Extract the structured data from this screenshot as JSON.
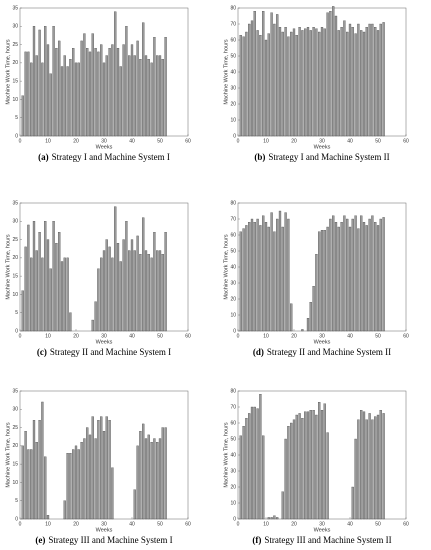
{
  "chart_data": [
    {
      "type": "bar",
      "caption_label": "(a)",
      "caption": "Strategy I and Machine System I",
      "xlabel": "Weeks",
      "ylabel": "Machine Work Time, hours",
      "color": "#9a9a9a",
      "x": [
        1,
        2,
        3,
        4,
        5,
        6,
        7,
        8,
        9,
        10,
        11,
        12,
        13,
        14,
        15,
        16,
        17,
        18,
        19,
        20,
        21,
        22,
        23,
        24,
        25,
        26,
        27,
        28,
        29,
        30,
        31,
        32,
        33,
        34,
        35,
        36,
        37,
        38,
        39,
        40,
        41,
        42,
        43,
        44,
        45,
        46,
        47,
        48,
        49,
        50,
        51,
        52
      ],
      "values": [
        11,
        23,
        23,
        20,
        30,
        22,
        29,
        20,
        30,
        25,
        17,
        30,
        24,
        26,
        19,
        22,
        19,
        21,
        24,
        20,
        20,
        26,
        28,
        24,
        23,
        28,
        24,
        23,
        25,
        20,
        22,
        24,
        25,
        34,
        24,
        19,
        25,
        30,
        22,
        25,
        22,
        26,
        21,
        31,
        22,
        21,
        20,
        27,
        22,
        22,
        21,
        27
      ],
      "xlim": [
        0,
        60
      ],
      "xticks": [
        0,
        10,
        20,
        30,
        40,
        50,
        60
      ],
      "ylim": [
        0,
        35
      ],
      "yticks": [
        0,
        5,
        10,
        15,
        20,
        25,
        30,
        35
      ]
    },
    {
      "type": "bar",
      "caption_label": "(b)",
      "caption": "Strategy I and Machine System II",
      "xlabel": "Weeks",
      "ylabel": "Machine Work Time, hours",
      "color": "#9a9a9a",
      "x": [
        1,
        2,
        3,
        4,
        5,
        6,
        7,
        8,
        9,
        10,
        11,
        12,
        13,
        14,
        15,
        16,
        17,
        18,
        19,
        20,
        21,
        22,
        23,
        24,
        25,
        26,
        27,
        28,
        29,
        30,
        31,
        32,
        33,
        34,
        35,
        36,
        37,
        38,
        39,
        40,
        41,
        42,
        43,
        44,
        45,
        46,
        47,
        48,
        49,
        50,
        51,
        52
      ],
      "values": [
        63,
        62,
        65,
        70,
        72,
        78,
        66,
        63,
        78,
        60,
        64,
        77,
        70,
        76,
        68,
        65,
        68,
        62,
        65,
        67,
        63,
        68,
        66,
        67,
        68,
        66,
        68,
        67,
        65,
        68,
        67,
        77,
        78,
        81,
        75,
        66,
        68,
        72,
        65,
        70,
        68,
        64,
        70,
        66,
        65,
        68,
        70,
        70,
        68,
        66,
        70,
        71
      ],
      "xlim": [
        0,
        60
      ],
      "xticks": [
        0,
        10,
        20,
        30,
        40,
        50,
        60
      ],
      "ylim": [
        0,
        80
      ],
      "yticks": [
        0,
        10,
        20,
        30,
        40,
        50,
        60,
        70,
        80
      ]
    },
    {
      "type": "bar",
      "caption_label": "(c)",
      "caption": "Strategy II and Machine System I",
      "xlabel": "Weeks",
      "ylabel": "Machine Work Time, hours",
      "color": "#9a9a9a",
      "x": [
        1,
        2,
        3,
        4,
        5,
        6,
        7,
        8,
        9,
        10,
        11,
        12,
        13,
        14,
        15,
        16,
        17,
        18,
        19,
        20,
        21,
        22,
        23,
        24,
        25,
        26,
        27,
        28,
        29,
        30,
        31,
        32,
        33,
        34,
        35,
        36,
        37,
        38,
        39,
        40,
        41,
        42,
        43,
        44,
        45,
        46,
        47,
        48,
        49,
        50,
        51,
        52
      ],
      "values": [
        11,
        23,
        29,
        20,
        30,
        22,
        27,
        20,
        30,
        25,
        17,
        30,
        24,
        27,
        19,
        20,
        20,
        5,
        0,
        0,
        0,
        0,
        0,
        0,
        0,
        3,
        8,
        17,
        20,
        22,
        25,
        23,
        20,
        34,
        24,
        19,
        25,
        30,
        22,
        25,
        22,
        26,
        21,
        31,
        22,
        21,
        20,
        27,
        22,
        22,
        21,
        27
      ],
      "xlim": [
        0,
        60
      ],
      "xticks": [
        0,
        10,
        20,
        30,
        40,
        50,
        60
      ],
      "ylim": [
        0,
        35
      ],
      "yticks": [
        0,
        5,
        10,
        15,
        20,
        25,
        30,
        35
      ]
    },
    {
      "type": "bar",
      "caption_label": "(d)",
      "caption": "Strategy II and Machine System II",
      "xlabel": "Weeks",
      "ylabel": "Machine Work Time, hours",
      "color": "#9a9a9a",
      "x": [
        1,
        2,
        3,
        4,
        5,
        6,
        7,
        8,
        9,
        10,
        11,
        12,
        13,
        14,
        15,
        16,
        17,
        18,
        19,
        20,
        21,
        22,
        23,
        24,
        25,
        26,
        27,
        28,
        29,
        30,
        31,
        32,
        33,
        34,
        35,
        36,
        37,
        38,
        39,
        40,
        41,
        42,
        43,
        44,
        45,
        46,
        47,
        48,
        49,
        50,
        51,
        52
      ],
      "values": [
        62,
        64,
        66,
        68,
        70,
        68,
        70,
        66,
        72,
        68,
        65,
        74,
        62,
        70,
        75,
        65,
        74,
        70,
        17,
        0,
        0,
        0,
        1,
        0,
        8,
        18,
        28,
        48,
        62,
        63,
        63,
        65,
        70,
        72,
        68,
        65,
        68,
        72,
        70,
        65,
        70,
        72,
        64,
        72,
        68,
        66,
        70,
        72,
        68,
        66,
        70,
        71
      ],
      "xlim": [
        0,
        60
      ],
      "xticks": [
        0,
        10,
        20,
        30,
        40,
        50,
        60
      ],
      "ylim": [
        0,
        80
      ],
      "yticks": [
        0,
        10,
        20,
        30,
        40,
        50,
        60,
        70,
        80
      ]
    },
    {
      "type": "bar",
      "caption_label": "(e)",
      "caption": "Strategy III and Machine System I",
      "xlabel": "Weeks",
      "ylabel": "Machine Work Time, hours",
      "color": "#9a9a9a",
      "x": [
        1,
        2,
        3,
        4,
        5,
        6,
        7,
        8,
        9,
        10,
        11,
        12,
        13,
        14,
        15,
        16,
        17,
        18,
        19,
        20,
        21,
        22,
        23,
        24,
        25,
        26,
        27,
        28,
        29,
        30,
        31,
        32,
        33,
        34,
        35,
        36,
        37,
        38,
        39,
        40,
        41,
        42,
        43,
        44,
        45,
        46,
        47,
        48,
        49,
        50,
        51,
        52
      ],
      "values": [
        20,
        24,
        19,
        19,
        27,
        21,
        27,
        32,
        17,
        1,
        0,
        0,
        0,
        0,
        0,
        5,
        18,
        18,
        19,
        20,
        19,
        21,
        22,
        25,
        23,
        28,
        22,
        27,
        28,
        24,
        28,
        27,
        14,
        0,
        0,
        0,
        0,
        0,
        0,
        0,
        8,
        20,
        24,
        26,
        22,
        23,
        21,
        22,
        21,
        22,
        25,
        25
      ],
      "xlim": [
        0,
        60
      ],
      "xticks": [
        0,
        10,
        20,
        30,
        40,
        50,
        60
      ],
      "ylim": [
        0,
        35
      ],
      "yticks": [
        0,
        5,
        10,
        15,
        20,
        25,
        30,
        35
      ]
    },
    {
      "type": "bar",
      "caption_label": "(f)",
      "caption": "Strategy III and Machine System II",
      "xlabel": "Weeks",
      "ylabel": "Machine Work Time, hours",
      "color": "#9a9a9a",
      "x": [
        1,
        2,
        3,
        4,
        5,
        6,
        7,
        8,
        9,
        10,
        11,
        12,
        13,
        14,
        15,
        16,
        17,
        18,
        19,
        20,
        21,
        22,
        23,
        24,
        25,
        26,
        27,
        28,
        29,
        30,
        31,
        32,
        33,
        34,
        35,
        36,
        37,
        38,
        39,
        40,
        41,
        42,
        43,
        44,
        45,
        46,
        47,
        48,
        49,
        50,
        51,
        52
      ],
      "values": [
        52,
        58,
        63,
        66,
        70,
        70,
        69,
        78,
        52,
        0,
        1,
        1,
        2,
        1,
        0,
        17,
        50,
        58,
        60,
        62,
        65,
        66,
        63,
        67,
        67,
        68,
        68,
        65,
        73,
        68,
        72,
        54,
        0,
        0,
        0,
        0,
        0,
        0,
        0,
        0,
        20,
        50,
        62,
        68,
        67,
        62,
        66,
        62,
        64,
        65,
        68,
        66
      ],
      "xlim": [
        0,
        60
      ],
      "xticks": [
        0,
        10,
        20,
        30,
        40,
        50,
        60
      ],
      "ylim": [
        0,
        80
      ],
      "yticks": [
        0,
        10,
        20,
        30,
        40,
        50,
        60,
        70,
        80
      ]
    }
  ]
}
